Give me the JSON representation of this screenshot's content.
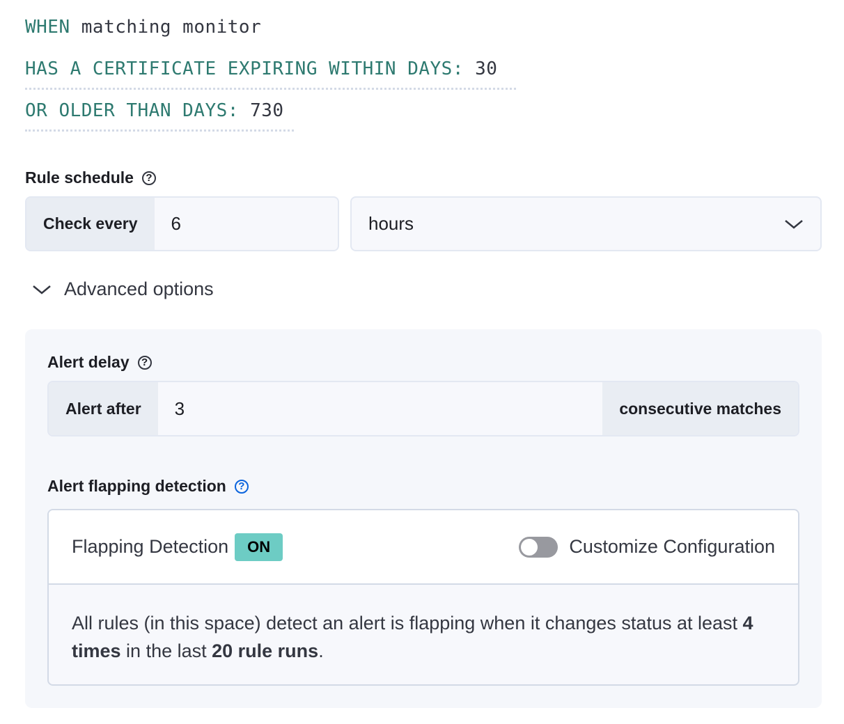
{
  "expression": {
    "when_keyword": "WHEN",
    "when_value": "matching monitor",
    "cert_keyword": "HAS A CERTIFICATE EXPIRING WITHIN DAYS:",
    "cert_value": "30",
    "older_keyword": "OR OLDER THAN DAYS:",
    "older_value": "730"
  },
  "schedule": {
    "label": "Rule schedule",
    "prepend": "Check every",
    "value": "6",
    "unit": "hours"
  },
  "advanced": {
    "label": "Advanced options"
  },
  "alert_delay": {
    "label": "Alert delay",
    "prepend": "Alert after",
    "value": "3",
    "append": "consecutive matches"
  },
  "flapping": {
    "label": "Alert flapping detection",
    "title": "Flapping Detection",
    "badge": "ON",
    "toggle_label": "Customize Configuration",
    "toggle_on": false,
    "text_1": "All rules (in this space) detect an alert is flapping when it changes status at least ",
    "times": "4 times",
    "text_2": " in the last ",
    "runs": "20 rule runs",
    "text_3": "."
  },
  "colors": {
    "keyword": "#2e7a70",
    "badge": "#6dccb1"
  }
}
